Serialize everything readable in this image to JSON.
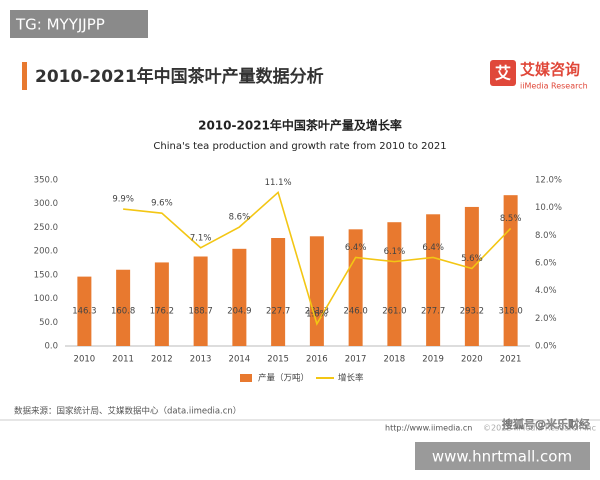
{
  "page": {
    "watermark": "TG: MYYJJPP",
    "heading": "2010-2021年中国茶叶产量数据分析",
    "logo_cn": "艾媒咨询",
    "logo_en": "iiMedia Research",
    "source": "数据来源：国家统计局、艾媒数据中心（data.iimedia.cn）",
    "footer_url": "http://www.iimedia.cn",
    "footer_copyright": "©2022 iiMedia Research Inc",
    "sohu": "搜狐号@米乐财经",
    "site": "www.hnrtmall.com"
  },
  "chart_data": {
    "type": "bar-line",
    "title": "2010-2021年中国茶叶产量及增长率",
    "subtitle": "China's tea production and growth rate from 2010 to 2021",
    "categories": [
      "2010",
      "2011",
      "2012",
      "2013",
      "2014",
      "2015",
      "2016",
      "2017",
      "2018",
      "2019",
      "2020",
      "2021"
    ],
    "series": [
      {
        "name": "产量（万吨）",
        "type": "bar",
        "color": "#e8792f",
        "values": [
          146.3,
          160.8,
          176.2,
          188.7,
          204.9,
          227.7,
          231.3,
          246.0,
          261.0,
          277.7,
          293.2,
          318.0
        ],
        "value_labels": [
          "146.3",
          "160.8",
          "176.2",
          "188.7",
          "204.9",
          "227.7",
          "231.3",
          "246.0",
          "261.0",
          "277.7",
          "293.2",
          "318.0"
        ]
      },
      {
        "name": "增长率",
        "type": "line",
        "axis": "y2",
        "color": "#f3c614",
        "values": [
          null,
          9.9,
          9.6,
          7.1,
          8.6,
          11.1,
          1.6,
          6.4,
          6.1,
          6.4,
          5.6,
          8.5
        ],
        "value_labels": [
          null,
          "9.9%",
          "9.6%",
          "7.1%",
          "8.6%",
          "11.1%",
          "1.6%",
          "6.4%",
          "6.1%",
          "6.4%",
          "5.6%",
          "8.5%"
        ]
      }
    ],
    "ylim": [
      0,
      350
    ],
    "yticks": [
      {
        "value": 0,
        "label": "0.0"
      },
      {
        "value": 50,
        "label": "50.0"
      },
      {
        "value": 100,
        "label": "100.0"
      },
      {
        "value": 150,
        "label": "150.0"
      },
      {
        "value": 200,
        "label": "200.0"
      },
      {
        "value": 250,
        "label": "250.0"
      },
      {
        "value": 300,
        "label": "300.0"
      },
      {
        "value": 350,
        "label": "350.0"
      }
    ],
    "y2lim": [
      0,
      12
    ],
    "y2ticks": [
      {
        "value": 0,
        "label": "0.0%"
      },
      {
        "value": 2,
        "label": "2.0%"
      },
      {
        "value": 4,
        "label": "4.0%"
      },
      {
        "value": 6,
        "label": "6.0%"
      },
      {
        "value": 8,
        "label": "8.0%"
      },
      {
        "value": 10,
        "label": "10.0%"
      },
      {
        "value": 12,
        "label": "12.0%"
      }
    ],
    "grid": false
  }
}
